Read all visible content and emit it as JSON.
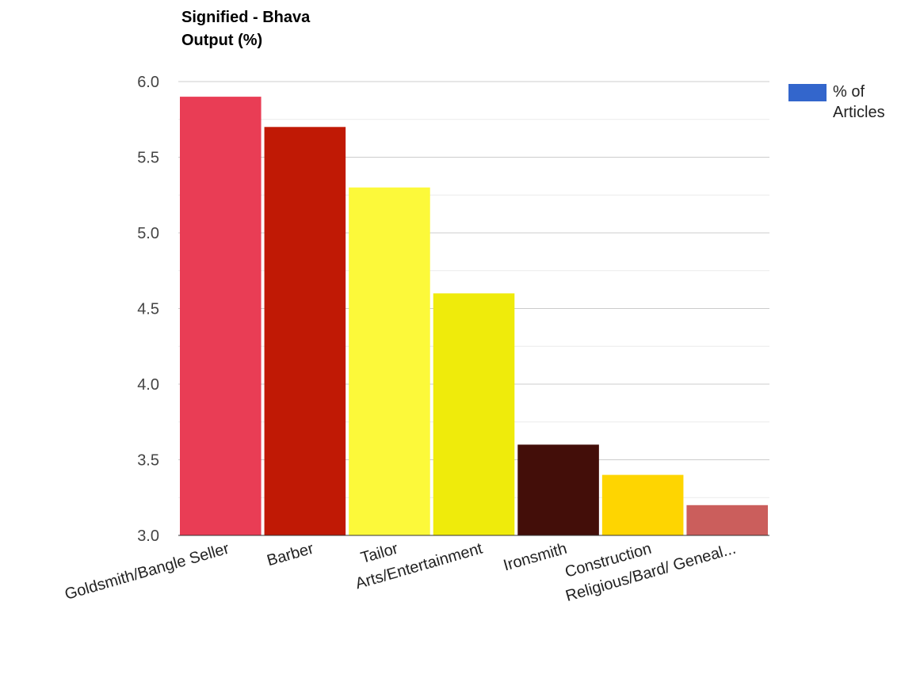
{
  "chart_data": {
    "type": "bar",
    "title_lines": [
      "Signified - Bhava",
      "Output (%)"
    ],
    "categories": [
      "Goldsmith/Bangle Seller",
      "Barber",
      "Tailor",
      "Arts/Entertainment",
      "Ironsmith",
      "Construction",
      "Religious/Bard/ Geneal..."
    ],
    "values": [
      5.9,
      5.7,
      5.3,
      4.6,
      3.6,
      3.4,
      3.2
    ],
    "bar_colors": [
      "#e93d55",
      "#c01905",
      "#fcf93a",
      "#efeb0b",
      "#430e09",
      "#fed501",
      "#cb5e5c"
    ],
    "series": [
      {
        "name": "% of Articles",
        "color": "#3366cc"
      }
    ],
    "ylim": [
      3.0,
      6.0
    ],
    "yticks": [
      "3.0",
      "3.5",
      "4.0",
      "4.5",
      "5.0",
      "5.5",
      "6.0"
    ],
    "ytick_values": [
      3.0,
      3.5,
      4.0,
      4.5,
      5.0,
      5.5,
      6.0
    ],
    "minor_gridlines": true,
    "legend_position": "right"
  }
}
